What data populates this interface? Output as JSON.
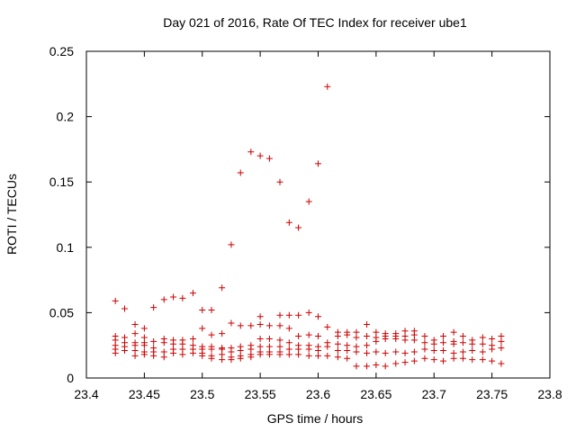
{
  "chart_data": {
    "type": "scatter",
    "title": "Day 021 of 2016, Rate Of TEC Index for receiver ube1",
    "xlabel": "GPS time / hours",
    "ylabel": "ROTI / TECUs",
    "xlim": [
      23.4,
      23.8
    ],
    "ylim": [
      0,
      0.25
    ],
    "xticks": [
      23.4,
      23.45,
      23.5,
      23.55,
      23.6,
      23.65,
      23.7,
      23.75,
      23.8
    ],
    "xtick_labels": [
      "23.4",
      "23.45",
      "23.5",
      "23.55",
      "23.6",
      "23.65",
      "23.7",
      "23.75",
      "23.8"
    ],
    "yticks": [
      0,
      0.05,
      0.1,
      0.15,
      0.2,
      0.25
    ],
    "ytick_labels": [
      "0",
      "0.05",
      "0.1",
      "0.15",
      "0.2",
      "0.25"
    ],
    "grid": false,
    "marker": "+",
    "marker_color": "#cc0000",
    "series": [
      {
        "name": "ROTI",
        "points": [
          [
            23.425,
            0.059
          ],
          [
            23.425,
            0.032
          ],
          [
            23.425,
            0.029
          ],
          [
            23.425,
            0.025
          ],
          [
            23.425,
            0.022
          ],
          [
            23.425,
            0.019
          ],
          [
            23.433,
            0.053
          ],
          [
            23.433,
            0.031
          ],
          [
            23.433,
            0.027
          ],
          [
            23.433,
            0.024
          ],
          [
            23.433,
            0.021
          ],
          [
            23.442,
            0.041
          ],
          [
            23.442,
            0.034
          ],
          [
            23.442,
            0.027
          ],
          [
            23.442,
            0.025
          ],
          [
            23.442,
            0.021
          ],
          [
            23.442,
            0.017
          ],
          [
            23.45,
            0.038
          ],
          [
            23.45,
            0.031
          ],
          [
            23.45,
            0.027
          ],
          [
            23.45,
            0.025
          ],
          [
            23.45,
            0.02
          ],
          [
            23.45,
            0.018
          ],
          [
            23.458,
            0.054
          ],
          [
            23.458,
            0.028
          ],
          [
            23.458,
            0.023
          ],
          [
            23.458,
            0.02
          ],
          [
            23.458,
            0.017
          ],
          [
            23.467,
            0.06
          ],
          [
            23.467,
            0.03
          ],
          [
            23.467,
            0.027
          ],
          [
            23.467,
            0.02
          ],
          [
            23.467,
            0.016
          ],
          [
            23.475,
            0.062
          ],
          [
            23.475,
            0.029
          ],
          [
            23.475,
            0.026
          ],
          [
            23.475,
            0.022
          ],
          [
            23.475,
            0.019
          ],
          [
            23.483,
            0.061
          ],
          [
            23.483,
            0.029
          ],
          [
            23.483,
            0.026
          ],
          [
            23.483,
            0.022
          ],
          [
            23.483,
            0.018
          ],
          [
            23.492,
            0.065
          ],
          [
            23.492,
            0.03
          ],
          [
            23.492,
            0.025
          ],
          [
            23.492,
            0.022
          ],
          [
            23.492,
            0.019
          ],
          [
            23.5,
            0.052
          ],
          [
            23.5,
            0.038
          ],
          [
            23.5,
            0.024
          ],
          [
            23.5,
            0.022
          ],
          [
            23.5,
            0.019
          ],
          [
            23.5,
            0.017
          ],
          [
            23.508,
            0.052
          ],
          [
            23.508,
            0.033
          ],
          [
            23.508,
            0.024
          ],
          [
            23.508,
            0.022
          ],
          [
            23.508,
            0.017
          ],
          [
            23.508,
            0.015
          ],
          [
            23.517,
            0.069
          ],
          [
            23.517,
            0.034
          ],
          [
            23.517,
            0.023
          ],
          [
            23.517,
            0.022
          ],
          [
            23.517,
            0.018
          ],
          [
            23.517,
            0.014
          ],
          [
            23.525,
            0.102
          ],
          [
            23.525,
            0.042
          ],
          [
            23.525,
            0.023
          ],
          [
            23.525,
            0.02
          ],
          [
            23.525,
            0.016
          ],
          [
            23.525,
            0.014
          ],
          [
            23.533,
            0.157
          ],
          [
            23.533,
            0.04
          ],
          [
            23.533,
            0.024
          ],
          [
            23.533,
            0.021
          ],
          [
            23.533,
            0.017
          ],
          [
            23.533,
            0.015
          ],
          [
            23.542,
            0.173
          ],
          [
            23.542,
            0.04
          ],
          [
            23.542,
            0.025
          ],
          [
            23.542,
            0.022
          ],
          [
            23.542,
            0.018
          ],
          [
            23.542,
            0.016
          ],
          [
            23.55,
            0.17
          ],
          [
            23.55,
            0.047
          ],
          [
            23.55,
            0.041
          ],
          [
            23.55,
            0.03
          ],
          [
            23.55,
            0.024
          ],
          [
            23.55,
            0.02
          ],
          [
            23.55,
            0.018
          ],
          [
            23.558,
            0.168
          ],
          [
            23.558,
            0.04
          ],
          [
            23.558,
            0.03
          ],
          [
            23.558,
            0.024
          ],
          [
            23.558,
            0.02
          ],
          [
            23.558,
            0.018
          ],
          [
            23.567,
            0.15
          ],
          [
            23.567,
            0.048
          ],
          [
            23.567,
            0.04
          ],
          [
            23.567,
            0.029
          ],
          [
            23.567,
            0.024
          ],
          [
            23.567,
            0.02
          ],
          [
            23.567,
            0.018
          ],
          [
            23.575,
            0.119
          ],
          [
            23.575,
            0.048
          ],
          [
            23.575,
            0.038
          ],
          [
            23.575,
            0.027
          ],
          [
            23.575,
            0.022
          ],
          [
            23.575,
            0.018
          ],
          [
            23.583,
            0.115
          ],
          [
            23.583,
            0.048
          ],
          [
            23.583,
            0.032
          ],
          [
            23.583,
            0.025
          ],
          [
            23.583,
            0.022
          ],
          [
            23.583,
            0.018
          ],
          [
            23.592,
            0.135
          ],
          [
            23.592,
            0.05
          ],
          [
            23.592,
            0.033
          ],
          [
            23.592,
            0.025
          ],
          [
            23.592,
            0.022
          ],
          [
            23.592,
            0.017
          ],
          [
            23.6,
            0.164
          ],
          [
            23.6,
            0.047
          ],
          [
            23.6,
            0.032
          ],
          [
            23.6,
            0.024
          ],
          [
            23.6,
            0.021
          ],
          [
            23.6,
            0.017
          ],
          [
            23.608,
            0.223
          ],
          [
            23.608,
            0.039
          ],
          [
            23.608,
            0.027
          ],
          [
            23.608,
            0.024
          ],
          [
            23.608,
            0.017
          ],
          [
            23.617,
            0.035
          ],
          [
            23.617,
            0.032
          ],
          [
            23.617,
            0.026
          ],
          [
            23.617,
            0.021
          ],
          [
            23.617,
            0.016
          ],
          [
            23.625,
            0.035
          ],
          [
            23.625,
            0.033
          ],
          [
            23.625,
            0.025
          ],
          [
            23.625,
            0.021
          ],
          [
            23.625,
            0.015
          ],
          [
            23.633,
            0.035
          ],
          [
            23.633,
            0.031
          ],
          [
            23.633,
            0.024
          ],
          [
            23.633,
            0.02
          ],
          [
            23.633,
            0.009
          ],
          [
            23.642,
            0.041
          ],
          [
            23.642,
            0.032
          ],
          [
            23.642,
            0.025
          ],
          [
            23.642,
            0.019
          ],
          [
            23.642,
            0.009
          ],
          [
            23.65,
            0.035
          ],
          [
            23.65,
            0.031
          ],
          [
            23.65,
            0.028
          ],
          [
            23.65,
            0.02
          ],
          [
            23.65,
            0.01
          ],
          [
            23.658,
            0.034
          ],
          [
            23.658,
            0.032
          ],
          [
            23.658,
            0.03
          ],
          [
            23.658,
            0.019
          ],
          [
            23.658,
            0.009
          ],
          [
            23.667,
            0.034
          ],
          [
            23.667,
            0.032
          ],
          [
            23.667,
            0.03
          ],
          [
            23.667,
            0.02
          ],
          [
            23.667,
            0.011
          ],
          [
            23.675,
            0.036
          ],
          [
            23.675,
            0.032
          ],
          [
            23.675,
            0.029
          ],
          [
            23.675,
            0.019
          ],
          [
            23.675,
            0.012
          ],
          [
            23.683,
            0.036
          ],
          [
            23.683,
            0.033
          ],
          [
            23.683,
            0.029
          ],
          [
            23.683,
            0.02
          ],
          [
            23.683,
            0.013
          ],
          [
            23.692,
            0.032
          ],
          [
            23.692,
            0.027
          ],
          [
            23.692,
            0.022
          ],
          [
            23.692,
            0.015
          ],
          [
            23.7,
            0.029
          ],
          [
            23.7,
            0.026
          ],
          [
            23.7,
            0.021
          ],
          [
            23.7,
            0.014
          ],
          [
            23.708,
            0.032
          ],
          [
            23.708,
            0.027
          ],
          [
            23.708,
            0.021
          ],
          [
            23.708,
            0.013
          ],
          [
            23.717,
            0.035
          ],
          [
            23.717,
            0.028
          ],
          [
            23.717,
            0.026
          ],
          [
            23.717,
            0.019
          ],
          [
            23.717,
            0.015
          ],
          [
            23.725,
            0.032
          ],
          [
            23.725,
            0.027
          ],
          [
            23.725,
            0.02
          ],
          [
            23.725,
            0.015
          ],
          [
            23.733,
            0.029
          ],
          [
            23.733,
            0.026
          ],
          [
            23.733,
            0.021
          ],
          [
            23.733,
            0.014
          ],
          [
            23.742,
            0.031
          ],
          [
            23.742,
            0.026
          ],
          [
            23.742,
            0.02
          ],
          [
            23.742,
            0.014
          ],
          [
            23.75,
            0.03
          ],
          [
            23.75,
            0.025
          ],
          [
            23.75,
            0.022
          ],
          [
            23.75,
            0.013
          ],
          [
            23.758,
            0.032
          ],
          [
            23.758,
            0.028
          ],
          [
            23.758,
            0.023
          ],
          [
            23.758,
            0.011
          ]
        ]
      }
    ]
  }
}
